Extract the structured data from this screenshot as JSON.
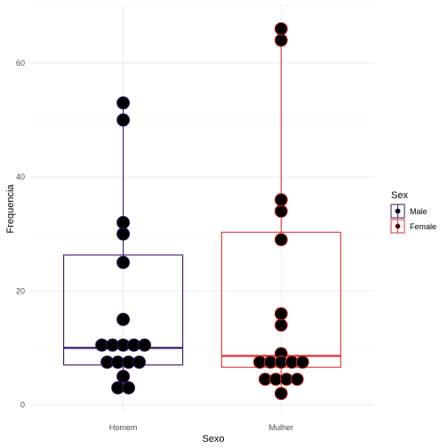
{
  "chart_data": {
    "type": "boxplot+dotplot",
    "xlabel": "Sexo",
    "ylabel": "Frequencia",
    "categories": [
      "Homem",
      "Mulher"
    ],
    "ylim": [
      -1.5,
      69.5
    ],
    "yticks": [
      0,
      20,
      40,
      60
    ],
    "grid": true,
    "legend": {
      "title": "Sex",
      "position": "right",
      "entries": [
        {
          "label": "Male",
          "color": "#3f1666"
        },
        {
          "label": "Female",
          "color": "#e0302e"
        }
      ]
    },
    "series": [
      {
        "category": "Homem",
        "legend_label": "Male",
        "color": "#3f1666",
        "box": {
          "min": 3,
          "q1": 7,
          "median": 10,
          "q3": 26.3,
          "max": 53
        },
        "points": [
          3,
          3,
          5,
          7.5,
          7.5,
          7.5,
          7.5,
          10.5,
          10.5,
          10.5,
          10.5,
          10.5,
          15,
          25,
          30,
          32,
          50,
          53
        ]
      },
      {
        "category": "Mulher",
        "legend_label": "Female",
        "color": "#e0302e",
        "box": {
          "min": 2,
          "q1": 6.6,
          "median": 8.6,
          "q3": 30.3,
          "max": 66
        },
        "points": [
          2,
          4.5,
          4.5,
          4.5,
          4.5,
          7.5,
          7.5,
          7.5,
          7.5,
          7.5,
          9,
          14,
          16,
          29,
          34,
          36,
          64,
          66
        ]
      }
    ]
  }
}
